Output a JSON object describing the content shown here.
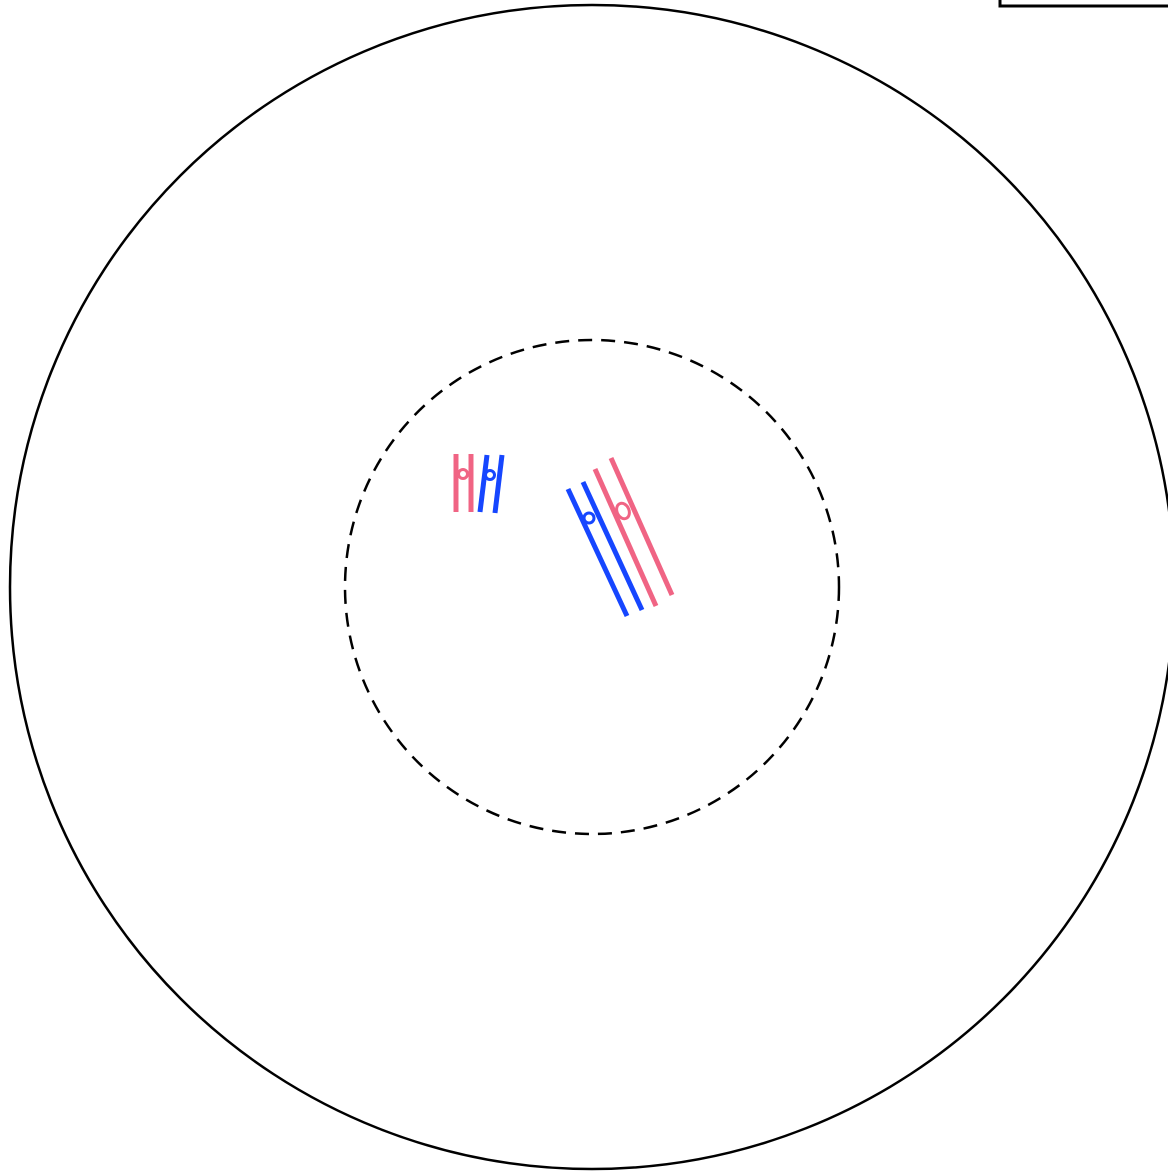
{
  "diagram": {
    "colors": {
      "stroke": "#000000",
      "pink": "#f06484",
      "blue": "#1646ff",
      "background": "#ffffff"
    },
    "outer_circle": {
      "style": "solid"
    },
    "inner_circle": {
      "style": "dashed"
    },
    "legend_box": {
      "style": "partially visible frame, top-right"
    },
    "markers": [
      {
        "id": "pink-vertical",
        "color": "pink",
        "lines": 2,
        "has_circle": true
      },
      {
        "id": "blue-vertical",
        "color": "blue",
        "lines": 2,
        "has_circle": true
      },
      {
        "id": "blue-diagonal",
        "color": "blue",
        "lines": 2,
        "has_circle": true
      },
      {
        "id": "pink-diagonal",
        "color": "pink",
        "lines": 2,
        "has_circle": true
      }
    ]
  }
}
